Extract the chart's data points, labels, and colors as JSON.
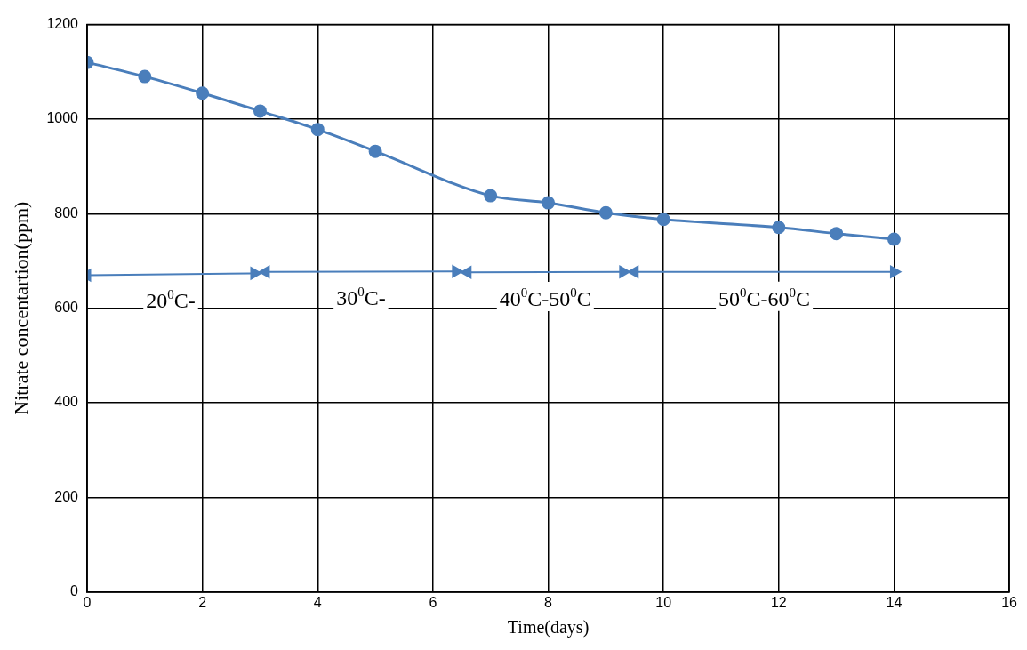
{
  "chart_data": {
    "type": "line",
    "xlabel": "Time(days)",
    "ylabel": "Nitrate concentartion(ppm)",
    "x": [
      0,
      1,
      2,
      3,
      4,
      5,
      7,
      8,
      9,
      10,
      12,
      13,
      14
    ],
    "series": [
      {
        "color": "#4a7ebb",
        "values": [
          1120,
          1090,
          1055,
          1017,
          978,
          932,
          838,
          823,
          802,
          788,
          771,
          758,
          746
        ]
      },
      {
        "color": "#4a7ebb",
        "marker": "triangle",
        "x": [
          0,
          2.9
        ],
        "values": [
          670,
          674
        ]
      },
      {
        "color": "#4a7ebb",
        "marker": "triangle",
        "x": [
          3.1,
          6.4
        ],
        "values": [
          677,
          678
        ]
      },
      {
        "color": "#4a7ebb",
        "marker": "triangle",
        "x": [
          6.6,
          9.3
        ],
        "values": [
          676,
          677
        ]
      },
      {
        "color": "#4a7ebb",
        "marker": "triangle",
        "x": [
          9.5,
          14
        ],
        "values": [
          677,
          677
        ]
      }
    ],
    "xlim": [
      0,
      16
    ],
    "xticks": [
      0,
      2,
      4,
      6,
      8,
      10,
      12,
      14,
      16
    ],
    "ylim": [
      0,
      1200
    ],
    "yticks": [
      0,
      200,
      400,
      600,
      800,
      1000,
      1200
    ],
    "grid": true,
    "legend": false,
    "marker": "circle",
    "line_style": "solid",
    "annotations": [
      "20$^{0}$C-",
      "30$^{0}$C-",
      "40$^{0}$C-50$^{0}$C",
      "50$^{0}$C-60$^{0}$C"
    ]
  }
}
